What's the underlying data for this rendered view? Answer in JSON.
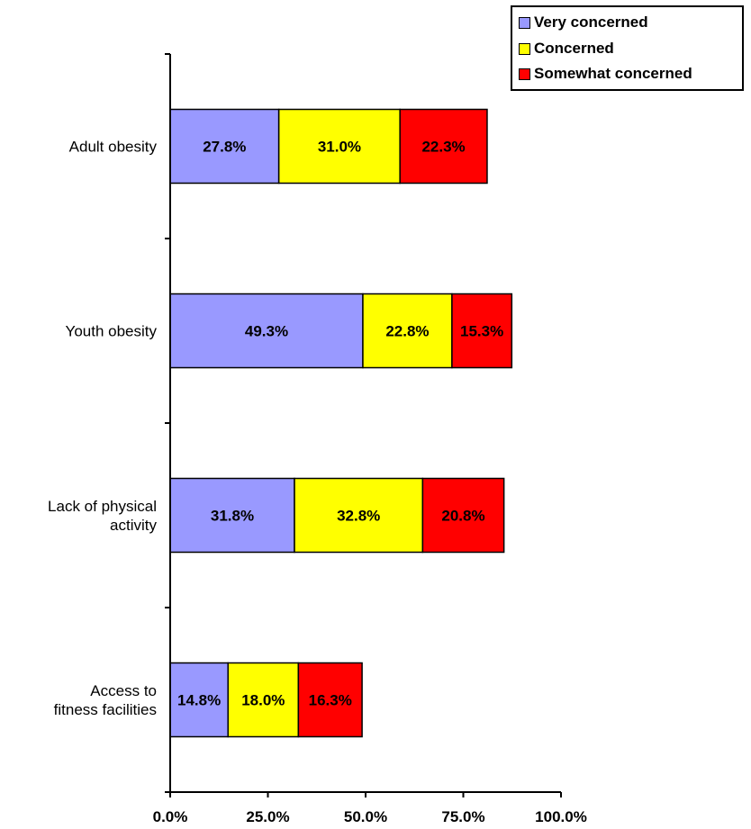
{
  "chart_data": {
    "type": "bar",
    "orientation": "horizontal",
    "stacked": true,
    "categories": [
      [
        "Adult obesity"
      ],
      [
        "Youth obesity"
      ],
      [
        "Lack of physical",
        "activity"
      ],
      [
        "Access to",
        "fitness facilities"
      ]
    ],
    "series": [
      {
        "name": "Very concerned",
        "color": "#9999ff",
        "values": [
          27.8,
          49.3,
          31.8,
          14.8
        ],
        "labels": [
          "27.8%",
          "49.3%",
          "31.8%",
          "14.8%"
        ]
      },
      {
        "name": "Concerned",
        "color": "#ffff00",
        "values": [
          31.0,
          22.8,
          32.8,
          18.0
        ],
        "labels": [
          "31.0%",
          "22.8%",
          "32.8%",
          "18.0%"
        ]
      },
      {
        "name": "Somewhat concerned",
        "color": "#ff0000",
        "values": [
          22.3,
          15.3,
          20.8,
          16.3
        ],
        "labels": [
          "22.3%",
          "15.3%",
          "20.8%",
          "16.3%"
        ]
      }
    ],
    "xlim": [
      0,
      100
    ],
    "xticks": [
      0,
      25,
      50,
      75,
      100
    ],
    "xtick_labels": [
      "0.0%",
      "25.0%",
      "50.0%",
      "75.0%",
      "100.0%"
    ],
    "title": "",
    "xlabel": "",
    "ylabel": "",
    "grid": false,
    "legend_position": "top-right"
  }
}
